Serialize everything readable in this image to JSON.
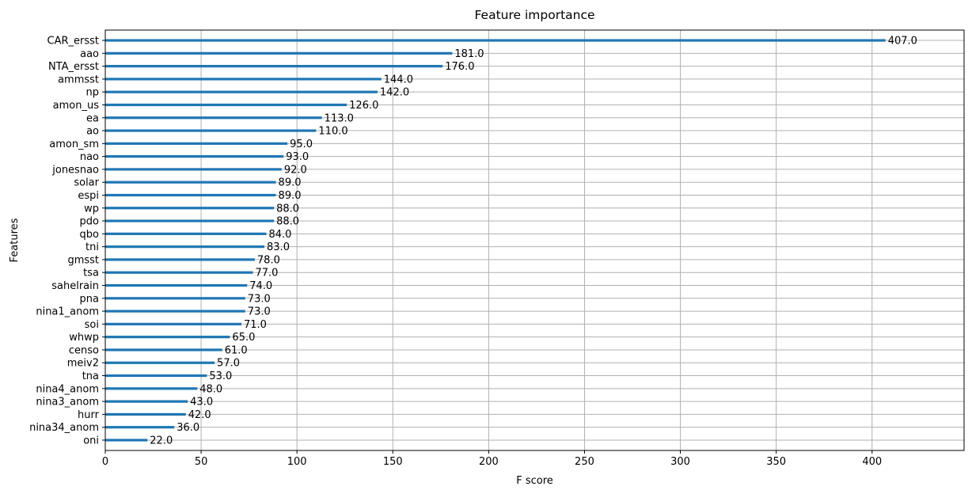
{
  "chart_data": {
    "type": "bar",
    "orientation": "horizontal",
    "title": "Feature importance",
    "xlabel": "F score",
    "ylabel": "Features",
    "xlim": [
      0,
      448
    ],
    "xticks": [
      0,
      50,
      100,
      150,
      200,
      250,
      300,
      350,
      400
    ],
    "grid": true,
    "bar_color": "#1f77b4",
    "categories": [
      "oni",
      "nina34_anom",
      "hurr",
      "nina3_anom",
      "nina4_anom",
      "tna",
      "meiv2",
      "censo",
      "whwp",
      "soi",
      "nina1_anom",
      "pna",
      "sahelrain",
      "tsa",
      "gmsst",
      "tni",
      "qbo",
      "pdo",
      "wp",
      "espi",
      "solar",
      "jonesnao",
      "nao",
      "amon_sm",
      "ao",
      "ea",
      "amon_us",
      "np",
      "ammsst",
      "NTA_ersst",
      "aao",
      "CAR_ersst"
    ],
    "values": [
      22,
      36,
      42,
      43,
      48,
      53,
      57,
      61,
      65,
      71,
      73,
      73,
      74,
      77,
      78,
      83,
      84,
      88,
      88,
      89,
      89,
      92,
      93,
      95,
      110,
      113,
      126,
      142,
      144,
      176,
      181,
      407
    ],
    "value_labels": [
      "22.0",
      "36.0",
      "42.0",
      "43.0",
      "48.0",
      "53.0",
      "57.0",
      "61.0",
      "65.0",
      "71.0",
      "73.0",
      "73.0",
      "74.0",
      "77.0",
      "78.0",
      "83.0",
      "84.0",
      "88.0",
      "88.0",
      "89.0",
      "89.0",
      "92.0",
      "93.0",
      "95.0",
      "110.0",
      "113.0",
      "126.0",
      "142.0",
      "144.0",
      "176.0",
      "181.0",
      "407.0"
    ]
  }
}
